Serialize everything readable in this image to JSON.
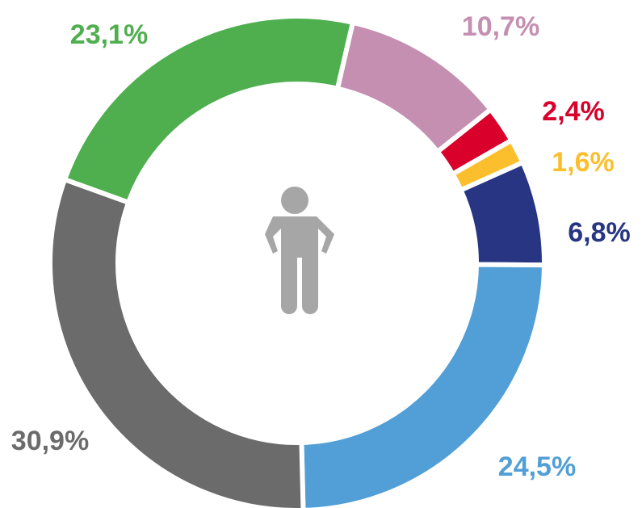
{
  "chart_data": {
    "type": "donut",
    "categories": [
      null,
      null,
      null,
      null,
      null,
      null,
      null
    ],
    "values": [
      10.7,
      2.4,
      1.6,
      6.8,
      24.5,
      30.9,
      23.1
    ],
    "value_labels": [
      "10,7%",
      "2,4%",
      "1,6%",
      "6,8%",
      "24,5%",
      "30,9%",
      "23,1%"
    ],
    "colors": [
      "#c48fb0",
      "#d9002b",
      "#fbbf2e",
      "#273583",
      "#519fd6",
      "#6b6b6b",
      "#4faf4f"
    ]
  }
}
